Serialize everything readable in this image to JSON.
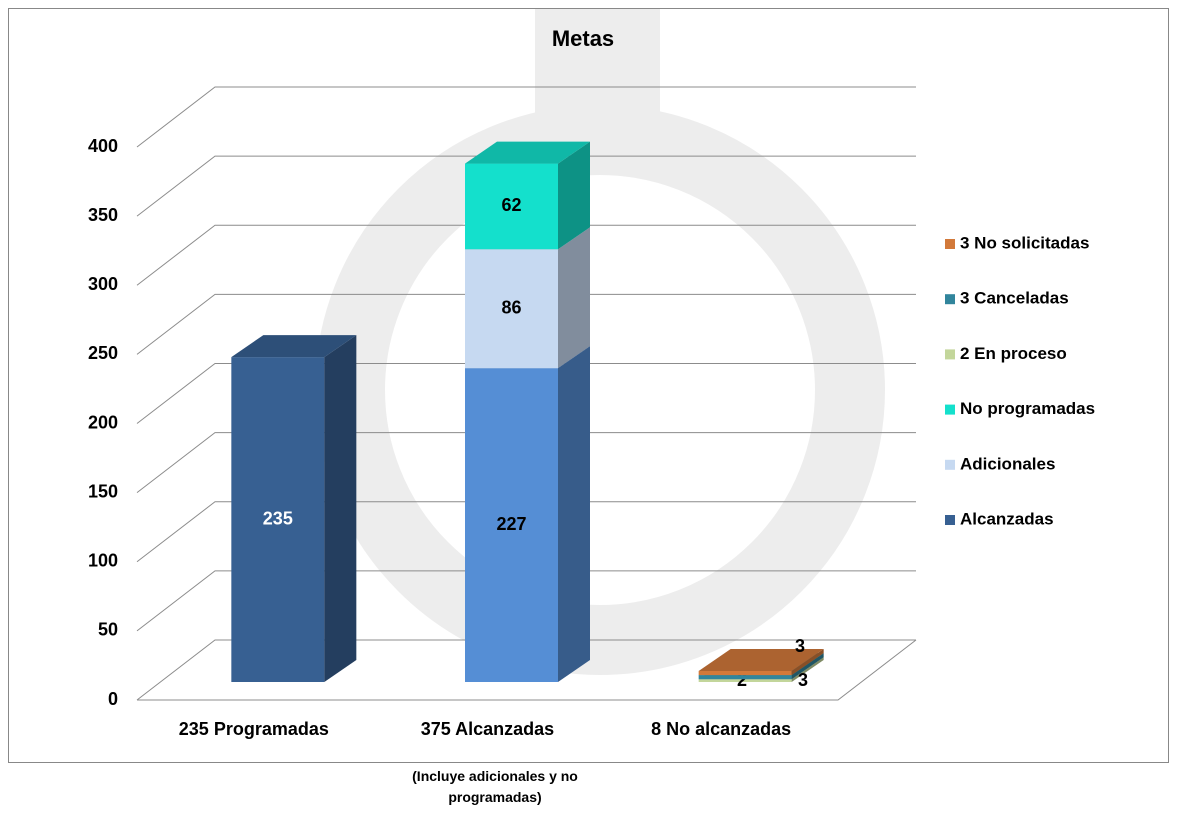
{
  "chart_data": {
    "type": "bar3d_stacked",
    "title": "Metas",
    "note": "(Incluye adicionales y no programadas)",
    "categories": [
      "235 Programadas",
      "375 Alcanzadas",
      "8 No alcanzadas"
    ],
    "ylim": [
      0,
      400
    ],
    "yticks": [
      0,
      50,
      100,
      150,
      200,
      250,
      300,
      350,
      400
    ],
    "grid": true,
    "legend": "right",
    "series": [
      {
        "name": "Alcanzadas",
        "color": "#376092",
        "point_colors": [
          "#376092",
          "#558ed5",
          "#376092"
        ],
        "values": [
          235,
          227,
          null
        ]
      },
      {
        "name": "Adicionales",
        "color": "#c6d9f1",
        "values": [
          null,
          86,
          null
        ]
      },
      {
        "name": "No programadas",
        "color": "#14e0cc",
        "values": [
          null,
          62,
          null
        ]
      },
      {
        "name": "2 En proceso",
        "color": "#c3d69b",
        "values": [
          null,
          null,
          2
        ]
      },
      {
        "name": "3 Canceladas",
        "color": "#31859c",
        "values": [
          null,
          null,
          3
        ]
      },
      {
        "name": "3 No solicitadas",
        "color": "#d2793a",
        "values": [
          null,
          null,
          3
        ]
      }
    ]
  }
}
